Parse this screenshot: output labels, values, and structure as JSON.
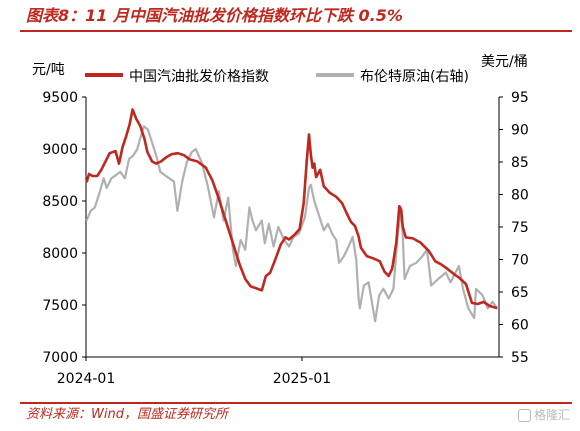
{
  "header": {
    "title": "图表8：11 月中国汽油批发价格指数环比下跌 0.5%"
  },
  "footer": {
    "source": "资料来源：Wind，国盛证券研究所",
    "watermark": "格隆汇"
  },
  "colors": {
    "primary": "#c0281e",
    "secondary": "#b0b0b0",
    "axis": "#000000"
  },
  "chart_data": {
    "type": "line",
    "y_left": {
      "unit": "元/吨",
      "range": [
        7000,
        9500
      ],
      "ticks": [
        "7000",
        "7500",
        "8000",
        "8500",
        "9000",
        "9500"
      ]
    },
    "y_right": {
      "unit": "美元/桶",
      "range": [
        55,
        95
      ],
      "ticks": [
        "55",
        "60",
        "65",
        "70",
        "75",
        "80",
        "85",
        "90",
        "95"
      ]
    },
    "x_axis": {
      "range": [
        "2024-01-01",
        "2025-12-01"
      ],
      "tick_labels": [
        {
          "date": "2024-01-01",
          "label": "2024-01"
        },
        {
          "date": "2025-01-01",
          "label": "2025-01"
        }
      ]
    },
    "grid": false,
    "legend_position": "top",
    "series": [
      {
        "name": "中国汽油批发价格指数",
        "axis": "left",
        "color": "#c0281e",
        "points": [
          [
            "2024-01-02",
            8680
          ],
          [
            "2024-01-06",
            8760
          ],
          [
            "2024-01-12",
            8740
          ],
          [
            "2024-01-20",
            8740
          ],
          [
            "2024-01-27",
            8800
          ],
          [
            "2024-02-03",
            8880
          ],
          [
            "2024-02-10",
            8960
          ],
          [
            "2024-02-20",
            8980
          ],
          [
            "2024-02-26",
            8860
          ],
          [
            "2024-03-03",
            9020
          ],
          [
            "2024-03-09",
            9120
          ],
          [
            "2024-03-15",
            9240
          ],
          [
            "2024-03-20",
            9380
          ],
          [
            "2024-03-26",
            9290
          ],
          [
            "2024-04-02",
            9220
          ],
          [
            "2024-04-09",
            9100
          ],
          [
            "2024-04-14",
            8970
          ],
          [
            "2024-04-22",
            8880
          ],
          [
            "2024-04-29",
            8860
          ],
          [
            "2024-05-07",
            8880
          ],
          [
            "2024-05-16",
            8920
          ],
          [
            "2024-05-25",
            8950
          ],
          [
            "2024-06-05",
            8960
          ],
          [
            "2024-06-15",
            8940
          ],
          [
            "2024-06-25",
            8900
          ],
          [
            "2024-07-08",
            8880
          ],
          [
            "2024-07-22",
            8820
          ],
          [
            "2024-08-02",
            8700
          ],
          [
            "2024-08-12",
            8540
          ],
          [
            "2024-08-21",
            8380
          ],
          [
            "2024-08-31",
            8200
          ],
          [
            "2024-09-10",
            8020
          ],
          [
            "2024-09-18",
            7880
          ],
          [
            "2024-09-27",
            7750
          ],
          [
            "2024-10-06",
            7680
          ],
          [
            "2024-10-16",
            7660
          ],
          [
            "2024-10-25",
            7640
          ],
          [
            "2024-11-01",
            7780
          ],
          [
            "2024-11-08",
            7810
          ],
          [
            "2024-11-17",
            7940
          ],
          [
            "2024-11-26",
            8080
          ],
          [
            "2024-12-04",
            8150
          ],
          [
            "2024-12-10",
            8130
          ],
          [
            "2024-12-20",
            8180
          ],
          [
            "2024-12-28",
            8230
          ],
          [
            "2025-01-04",
            8480
          ],
          [
            "2025-01-09",
            8880
          ],
          [
            "2025-01-13",
            9140
          ],
          [
            "2025-01-16",
            8950
          ],
          [
            "2025-01-19",
            8820
          ],
          [
            "2025-01-22",
            8860
          ],
          [
            "2025-01-25",
            8730
          ],
          [
            "2025-02-01",
            8800
          ],
          [
            "2025-02-07",
            8640
          ],
          [
            "2025-02-17",
            8580
          ],
          [
            "2025-02-28",
            8540
          ],
          [
            "2025-03-10",
            8480
          ],
          [
            "2025-03-18",
            8380
          ],
          [
            "2025-03-25",
            8300
          ],
          [
            "2025-04-01",
            8260
          ],
          [
            "2025-04-07",
            8160
          ],
          [
            "2025-04-11",
            8050
          ],
          [
            "2025-04-21",
            7970
          ],
          [
            "2025-05-01",
            7950
          ],
          [
            "2025-05-13",
            7920
          ],
          [
            "2025-05-21",
            7820
          ],
          [
            "2025-05-28",
            7780
          ],
          [
            "2025-06-03",
            7850
          ],
          [
            "2025-06-10",
            8100
          ],
          [
            "2025-06-15",
            8450
          ],
          [
            "2025-06-18",
            8420
          ],
          [
            "2025-06-21",
            8250
          ],
          [
            "2025-06-26",
            8150
          ],
          [
            "2025-07-08",
            8140
          ],
          [
            "2025-07-21",
            8100
          ],
          [
            "2025-08-04",
            8020
          ],
          [
            "2025-08-15",
            7920
          ],
          [
            "2025-08-25",
            7890
          ],
          [
            "2025-09-04",
            7850
          ],
          [
            "2025-09-15",
            7800
          ],
          [
            "2025-09-25",
            7760
          ],
          [
            "2025-10-06",
            7700
          ],
          [
            "2025-10-16",
            7520
          ],
          [
            "2025-10-26",
            7510
          ],
          [
            "2025-11-05",
            7530
          ],
          [
            "2025-11-15",
            7490
          ],
          [
            "2025-11-28",
            7470
          ]
        ]
      },
      {
        "name": "布伦特原油(右轴)",
        "axis": "right",
        "color": "#b0b0b0",
        "points": [
          [
            "2024-01-02",
            76.0
          ],
          [
            "2024-01-09",
            77.5
          ],
          [
            "2024-01-16",
            78.0
          ],
          [
            "2024-01-23",
            80.0
          ],
          [
            "2024-01-31",
            82.5
          ],
          [
            "2024-02-05",
            81.0
          ],
          [
            "2024-02-13",
            82.5
          ],
          [
            "2024-02-21",
            83.0
          ],
          [
            "2024-02-28",
            83.5
          ],
          [
            "2024-03-07",
            82.5
          ],
          [
            "2024-03-14",
            85.5
          ],
          [
            "2024-03-21",
            86.0
          ],
          [
            "2024-03-28",
            87.0
          ],
          [
            "2024-04-03",
            89.0
          ],
          [
            "2024-04-08",
            90.5
          ],
          [
            "2024-04-15",
            90.0
          ],
          [
            "2024-04-22",
            88.0
          ],
          [
            "2024-04-29",
            86.0
          ],
          [
            "2024-05-06",
            83.5
          ],
          [
            "2024-05-13",
            83.0
          ],
          [
            "2024-05-21",
            82.5
          ],
          [
            "2024-05-29",
            82.0
          ],
          [
            "2024-06-04",
            77.5
          ],
          [
            "2024-06-12",
            82.0
          ],
          [
            "2024-06-20",
            85.0
          ],
          [
            "2024-06-28",
            86.5
          ],
          [
            "2024-07-05",
            87.0
          ],
          [
            "2024-07-15",
            85.0
          ],
          [
            "2024-07-25",
            81.5
          ],
          [
            "2024-08-05",
            76.5
          ],
          [
            "2024-08-13",
            80.5
          ],
          [
            "2024-08-21",
            76.0
          ],
          [
            "2024-08-29",
            79.5
          ],
          [
            "2024-09-06",
            71.5
          ],
          [
            "2024-09-11",
            69.0
          ],
          [
            "2024-09-19",
            73.0
          ],
          [
            "2024-09-27",
            71.5
          ],
          [
            "2024-10-04",
            78.0
          ],
          [
            "2024-10-09",
            76.0
          ],
          [
            "2024-10-15",
            74.5
          ],
          [
            "2024-10-25",
            76.0
          ],
          [
            "2024-10-30",
            72.5
          ],
          [
            "2024-11-06",
            75.5
          ],
          [
            "2024-11-14",
            72.0
          ],
          [
            "2024-11-22",
            75.0
          ],
          [
            "2024-12-02",
            73.0
          ],
          [
            "2024-12-10",
            72.0
          ],
          [
            "2024-12-18",
            73.5
          ],
          [
            "2024-12-27",
            74.0
          ],
          [
            "2025-01-06",
            76.5
          ],
          [
            "2025-01-13",
            81.0
          ],
          [
            "2025-01-16",
            81.5
          ],
          [
            "2025-01-22",
            79.0
          ],
          [
            "2025-01-31",
            76.5
          ],
          [
            "2025-02-07",
            74.5
          ],
          [
            "2025-02-14",
            75.5
          ],
          [
            "2025-02-21",
            74.0
          ],
          [
            "2025-02-28",
            73.0
          ],
          [
            "2025-03-05",
            69.5
          ],
          [
            "2025-03-13",
            70.5
          ],
          [
            "2025-03-21",
            72.0
          ],
          [
            "2025-03-28",
            73.5
          ],
          [
            "2025-04-03",
            70.0
          ],
          [
            "2025-04-07",
            64.0
          ],
          [
            "2025-04-09",
            62.5
          ],
          [
            "2025-04-16",
            66.0
          ],
          [
            "2025-04-24",
            66.5
          ],
          [
            "2025-05-05",
            60.5
          ],
          [
            "2025-05-12",
            64.5
          ],
          [
            "2025-05-19",
            65.5
          ],
          [
            "2025-05-28",
            64.0
          ],
          [
            "2025-06-05",
            65.5
          ],
          [
            "2025-06-13",
            74.5
          ],
          [
            "2025-06-19",
            77.5
          ],
          [
            "2025-06-24",
            67.0
          ],
          [
            "2025-07-03",
            69.0
          ],
          [
            "2025-07-14",
            69.5
          ],
          [
            "2025-07-24",
            70.5
          ],
          [
            "2025-08-01",
            71.5
          ],
          [
            "2025-08-08",
            66.0
          ],
          [
            "2025-08-20",
            67.0
          ],
          [
            "2025-09-02",
            68.0
          ],
          [
            "2025-09-10",
            66.5
          ],
          [
            "2025-09-24",
            69.0
          ],
          [
            "2025-10-01",
            65.5
          ],
          [
            "2025-10-10",
            62.5
          ],
          [
            "2025-10-20",
            61.0
          ],
          [
            "2025-10-23",
            65.5
          ],
          [
            "2025-11-03",
            64.5
          ],
          [
            "2025-11-12",
            62.5
          ],
          [
            "2025-11-20",
            63.5
          ],
          [
            "2025-11-28",
            62.5
          ]
        ]
      }
    ]
  }
}
